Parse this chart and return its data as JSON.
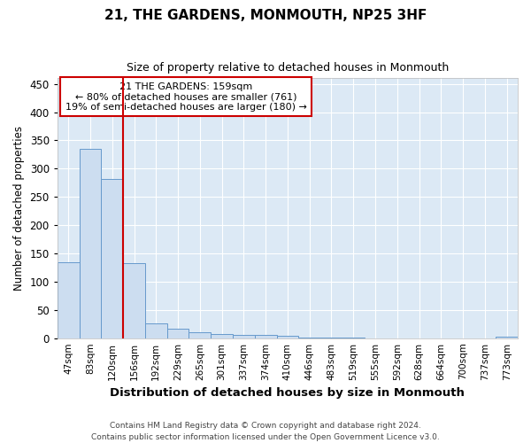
{
  "title": "21, THE GARDENS, MONMOUTH, NP25 3HF",
  "subtitle": "Size of property relative to detached houses in Monmouth",
  "xlabel": "Distribution of detached houses by size in Monmouth",
  "ylabel": "Number of detached properties",
  "categories": [
    "47sqm",
    "83sqm",
    "120sqm",
    "156sqm",
    "192sqm",
    "229sqm",
    "265sqm",
    "301sqm",
    "337sqm",
    "374sqm",
    "410sqm",
    "446sqm",
    "483sqm",
    "519sqm",
    "555sqm",
    "592sqm",
    "628sqm",
    "664sqm",
    "700sqm",
    "737sqm",
    "773sqm"
  ],
  "values": [
    135,
    335,
    281,
    133,
    26,
    17,
    11,
    7,
    5,
    5,
    4,
    1,
    1,
    1,
    0,
    0,
    0,
    0,
    0,
    0,
    2
  ],
  "bar_color": "#ccddf0",
  "bar_edge_color": "#6699cc",
  "vline_color": "#cc0000",
  "vline_x": 2.5,
  "annotation_text": "21 THE GARDENS: 159sqm\n← 80% of detached houses are smaller (761)\n19% of semi-detached houses are larger (180) →",
  "annotation_box_color": "#ffffff",
  "annotation_box_edge": "#cc0000",
  "ylim": [
    0,
    460
  ],
  "yticks": [
    0,
    50,
    100,
    150,
    200,
    250,
    300,
    350,
    400,
    450
  ],
  "footer": "Contains HM Land Registry data © Crown copyright and database right 2024.\nContains public sector information licensed under the Open Government Licence v3.0.",
  "bg_color": "#ffffff",
  "plot_bg_color": "#dce9f5",
  "grid_color": "#ffffff"
}
